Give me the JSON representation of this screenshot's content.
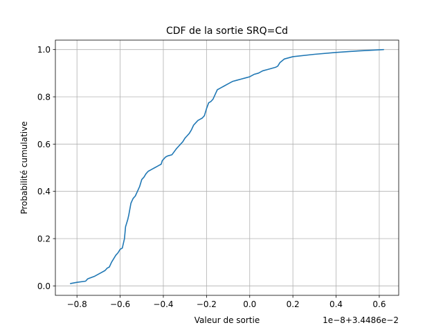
{
  "chart_data": {
    "type": "line",
    "title": "CDF de la sortie SRQ=Cd",
    "xlabel": "Valeur de sortie",
    "ylabel": "Probabilité cumulative",
    "offset_text": "1e−8+3.4486e−2",
    "xlim": [
      -0.9,
      0.69
    ],
    "ylim": [
      -0.04,
      1.04
    ],
    "xticks": [
      -0.8,
      -0.6,
      -0.4,
      -0.2,
      0.0,
      0.2,
      0.4,
      0.6
    ],
    "xtick_labels": [
      "−0.8",
      "−0.6",
      "−0.4",
      "−0.2",
      "0.0",
      "0.2",
      "0.4",
      "0.6"
    ],
    "yticks": [
      0.0,
      0.2,
      0.4,
      0.6,
      0.8,
      1.0
    ],
    "ytick_labels": [
      "0.0",
      "0.2",
      "0.4",
      "0.6",
      "0.8",
      "1.0"
    ],
    "grid": true,
    "color": "#1f77b4",
    "series": [
      {
        "x": [
          -0.83,
          -0.8,
          -0.76,
          -0.75,
          -0.72,
          -0.69,
          -0.67,
          -0.66,
          -0.65,
          -0.64,
          -0.63,
          -0.62,
          -0.61,
          -0.6,
          -0.59,
          -0.585,
          -0.58,
          -0.575,
          -0.57,
          -0.565,
          -0.56,
          -0.55,
          -0.545,
          -0.54,
          -0.535,
          -0.53,
          -0.52,
          -0.51,
          -0.5,
          -0.49,
          -0.48,
          -0.47,
          -0.46,
          -0.45,
          -0.44,
          -0.43,
          -0.42,
          -0.41,
          -0.405,
          -0.4,
          -0.395,
          -0.39,
          -0.38,
          -0.36,
          -0.34,
          -0.33,
          -0.32,
          -0.31,
          -0.3,
          -0.29,
          -0.28,
          -0.27,
          -0.26,
          -0.25,
          -0.24,
          -0.23,
          -0.22,
          -0.21,
          -0.2,
          -0.19,
          -0.18,
          -0.175,
          -0.17,
          -0.16,
          -0.15,
          -0.14,
          -0.13,
          -0.12,
          -0.1,
          -0.08,
          -0.06,
          -0.04,
          -0.02,
          0.0,
          0.02,
          0.04,
          0.06,
          0.08,
          0.1,
          0.12,
          0.13,
          0.14,
          0.16,
          0.2,
          0.3,
          0.4,
          0.5,
          0.62
        ],
        "y": [
          0.01,
          0.015,
          0.02,
          0.03,
          0.04,
          0.055,
          0.065,
          0.075,
          0.08,
          0.1,
          0.115,
          0.13,
          0.14,
          0.155,
          0.16,
          0.18,
          0.2,
          0.25,
          0.265,
          0.28,
          0.3,
          0.35,
          0.36,
          0.37,
          0.375,
          0.38,
          0.4,
          0.42,
          0.45,
          0.46,
          0.475,
          0.485,
          0.49,
          0.495,
          0.5,
          0.505,
          0.51,
          0.515,
          0.53,
          0.535,
          0.54,
          0.545,
          0.55,
          0.555,
          0.58,
          0.59,
          0.6,
          0.61,
          0.625,
          0.635,
          0.645,
          0.66,
          0.68,
          0.69,
          0.7,
          0.705,
          0.71,
          0.72,
          0.75,
          0.775,
          0.78,
          0.785,
          0.79,
          0.81,
          0.83,
          0.835,
          0.84,
          0.845,
          0.855,
          0.865,
          0.87,
          0.875,
          0.88,
          0.885,
          0.895,
          0.9,
          0.91,
          0.915,
          0.92,
          0.925,
          0.93,
          0.945,
          0.96,
          0.97,
          0.98,
          0.988,
          0.994,
          1.0
        ]
      }
    ]
  }
}
